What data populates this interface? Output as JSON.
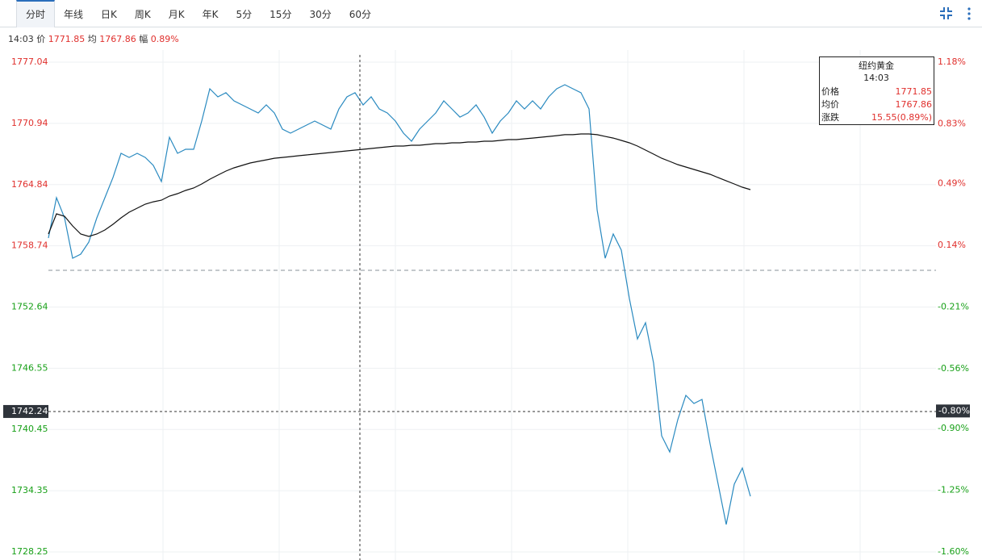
{
  "toolbar": {
    "tabs": [
      "分时",
      "年线",
      "日K",
      "周K",
      "月K",
      "年K",
      "5分",
      "15分",
      "30分",
      "60分"
    ],
    "active": 0
  },
  "info": {
    "time": "14:03",
    "price_label": "价",
    "price": "1771.85",
    "avg_label": "均",
    "avg": "1767.86",
    "change_label": "幅",
    "change": "0.89%"
  },
  "tooltip": {
    "title": "纽约黄金",
    "time": "14:03",
    "rows": [
      [
        "价格",
        "1771.85"
      ],
      [
        "均价",
        "1767.86"
      ],
      [
        "涨跌",
        "15.55(0.89%)"
      ]
    ]
  },
  "chart_data": {
    "type": "line",
    "xlim": [
      0,
      110
    ],
    "ylim": [
      1728.25,
      1777.04
    ],
    "yticks": [
      1777.04,
      1770.94,
      1764.84,
      1758.74,
      1752.64,
      1746.55,
      1740.45,
      1734.35,
      1728.25
    ],
    "y2lim": [
      -1.6,
      1.18
    ],
    "y2ticks": [
      {
        "value": 1.18,
        "label": "1.18%"
      },
      {
        "value": 0.83,
        "label": "0.83%"
      },
      {
        "value": 0.49,
        "label": "0.49%"
      },
      {
        "value": 0.14,
        "label": "0.14%"
      },
      {
        "value": -0.21,
        "label": "-0.21%"
      },
      {
        "value": -0.56,
        "label": "-0.56%"
      },
      {
        "value": -0.9,
        "label": "-0.90%"
      },
      {
        "value": -1.25,
        "label": "-1.25%"
      },
      {
        "value": -1.6,
        "label": "-1.60%"
      }
    ],
    "base": 1756.3,
    "up_color": "#e0302d",
    "down_color": "#18a018",
    "grid": true,
    "crosshair_y": 1742.24,
    "crosshair_y2": {
      "value": -0.8,
      "label": "-0.80%"
    },
    "series": [
      {
        "color": "#2a8ac0",
        "values": [
          1759.52,
          1763.54,
          1761.53,
          1757.51,
          1757.91,
          1759.11,
          1761.53,
          1763.54,
          1765.54,
          1767.96,
          1767.55,
          1767.96,
          1767.55,
          1766.75,
          1765.14,
          1769.56,
          1767.96,
          1768.36,
          1768.36,
          1771.17,
          1774.39,
          1773.58,
          1773.99,
          1773.18,
          1772.78,
          1772.38,
          1771.98,
          1772.78,
          1771.98,
          1770.37,
          1769.97,
          1770.37,
          1770.77,
          1771.17,
          1770.77,
          1770.37,
          1772.38,
          1773.58,
          1773.99,
          1772.78,
          1773.58,
          1772.38,
          1771.98,
          1771.17,
          1769.97,
          1769.16,
          1770.37,
          1771.17,
          1771.98,
          1773.18,
          1772.38,
          1771.57,
          1771.98,
          1772.78,
          1771.57,
          1769.97,
          1771.17,
          1771.98,
          1773.18,
          1772.38,
          1773.18,
          1772.38,
          1773.58,
          1774.39,
          1774.79,
          1774.39,
          1773.99,
          1772.38,
          1762.33,
          1757.51,
          1759.92,
          1758.31,
          1753.49,
          1749.47,
          1751.08,
          1747.06,
          1739.82,
          1738.21,
          1741.43,
          1743.84,
          1743.04,
          1743.44,
          1739.02,
          1735.0,
          1730.98,
          1735.0,
          1736.61,
          1733.79
        ]
      },
      {
        "color": "#111111",
        "values": [
          1759.92,
          1761.93,
          1761.69,
          1760.72,
          1759.92,
          1759.68,
          1759.92,
          1760.32,
          1760.88,
          1761.53,
          1762.09,
          1762.49,
          1762.89,
          1763.13,
          1763.29,
          1763.7,
          1763.94,
          1764.26,
          1764.5,
          1764.9,
          1765.38,
          1765.79,
          1766.19,
          1766.51,
          1766.75,
          1766.99,
          1767.15,
          1767.31,
          1767.47,
          1767.55,
          1767.63,
          1767.72,
          1767.8,
          1767.88,
          1767.96,
          1768.04,
          1768.12,
          1768.2,
          1768.28,
          1768.36,
          1768.44,
          1768.52,
          1768.6,
          1768.68,
          1768.68,
          1768.76,
          1768.76,
          1768.84,
          1768.92,
          1768.92,
          1769.0,
          1769.0,
          1769.08,
          1769.08,
          1769.16,
          1769.16,
          1769.24,
          1769.32,
          1769.32,
          1769.4,
          1769.48,
          1769.56,
          1769.64,
          1769.72,
          1769.81,
          1769.81,
          1769.89,
          1769.89,
          1769.81,
          1769.64,
          1769.48,
          1769.24,
          1769.0,
          1768.68,
          1768.28,
          1767.88,
          1767.47,
          1767.15,
          1766.83,
          1766.59,
          1766.35,
          1766.11,
          1765.87,
          1765.54,
          1765.22,
          1764.9,
          1764.58,
          1764.34
        ]
      }
    ]
  }
}
